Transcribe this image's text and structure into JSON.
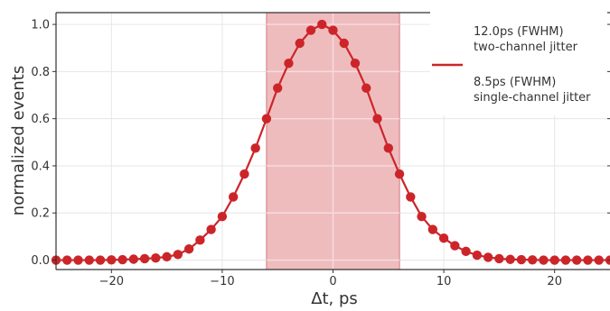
{
  "chart_data": {
    "type": "line",
    "title": "",
    "xlabel": "Δt, ps",
    "ylabel": "normalized events",
    "xlim": [
      -25,
      25
    ],
    "ylim": [
      -0.04,
      1.05
    ],
    "xticks": [
      -20,
      -10,
      0,
      10,
      20
    ],
    "xtick_labels": [
      "−20",
      "−10",
      "0",
      "10",
      "20"
    ],
    "yticks": [
      0.0,
      0.2,
      0.4,
      0.6,
      0.8,
      1.0
    ],
    "ytick_labels": [
      "0.0",
      "0.2",
      "0.4",
      "0.6",
      "0.8",
      "1.0"
    ],
    "grid": true,
    "shaded_region": {
      "x_from": -6,
      "x_to": 6,
      "color": "#efbcbe",
      "edge_color": "#d9888c"
    },
    "series": [
      {
        "marker": "circle",
        "color": "#cc2529",
        "x": [
          -25,
          -24,
          -23,
          -22,
          -21,
          -20,
          -19,
          -18,
          -17,
          -16,
          -15,
          -14,
          -13,
          -12,
          -11,
          -10,
          -9,
          -8,
          -7,
          -6,
          -5,
          -4,
          -3,
          -2,
          -1,
          0,
          1,
          2,
          3,
          4,
          5,
          6,
          7,
          8,
          9,
          10,
          11,
          12,
          13,
          14,
          15,
          16,
          17,
          18,
          19,
          20,
          21,
          22,
          23,
          24,
          25
        ],
        "y": [
          0.0,
          0.0,
          0.0,
          0.0,
          0.0,
          0.001,
          0.002,
          0.004,
          0.006,
          0.009,
          0.014,
          0.024,
          0.047,
          0.085,
          0.13,
          0.185,
          0.268,
          0.365,
          0.475,
          0.6,
          0.73,
          0.835,
          0.92,
          0.975,
          1.0,
          0.975,
          0.92,
          0.835,
          0.73,
          0.6,
          0.475,
          0.365,
          0.268,
          0.185,
          0.13,
          0.093,
          0.061,
          0.037,
          0.021,
          0.012,
          0.006,
          0.003,
          0.002,
          0.001,
          0.0,
          0.0,
          0.0,
          0.0,
          0.0,
          0.0,
          0.0
        ]
      }
    ],
    "legend": {
      "placement": "top-right",
      "line_color": "#cc2529",
      "entries": [
        {
          "line1": "12.0ps (FWHM)",
          "line2": "two-channel jitter"
        },
        {
          "line1": "8.5ps (FWHM)",
          "line2": "single-channel jitter"
        }
      ]
    }
  }
}
